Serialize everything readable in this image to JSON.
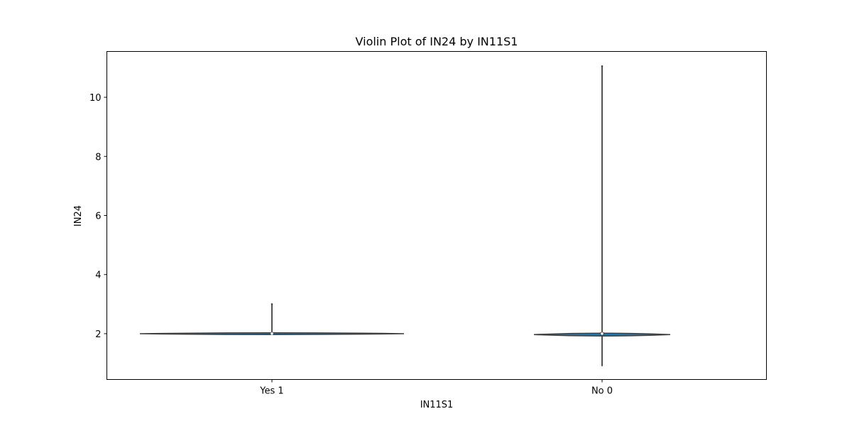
{
  "chart_data": {
    "type": "violin",
    "title": "Violin Plot of IN24 by IN11S1",
    "xlabel": "IN11S1",
    "ylabel": "IN24",
    "categories": [
      "Yes 1",
      "No 0"
    ],
    "ylim": [
      0.45,
      11.55
    ],
    "yticks": [
      2,
      4,
      6,
      8,
      10
    ],
    "grid": false,
    "violins": [
      {
        "category": "Yes 1",
        "min": 2.0,
        "max": 3.0,
        "q1": 2.0,
        "median": 2.0,
        "q3": 2.0,
        "density_peak": 2.0,
        "color": "#1f77b4"
      },
      {
        "category": "No 0",
        "min": 0.9,
        "max": 11.05,
        "q1": 1.95,
        "median": 2.0,
        "q3": 2.05,
        "density_peak": 1.97,
        "color": "#1f77b4"
      }
    ]
  }
}
